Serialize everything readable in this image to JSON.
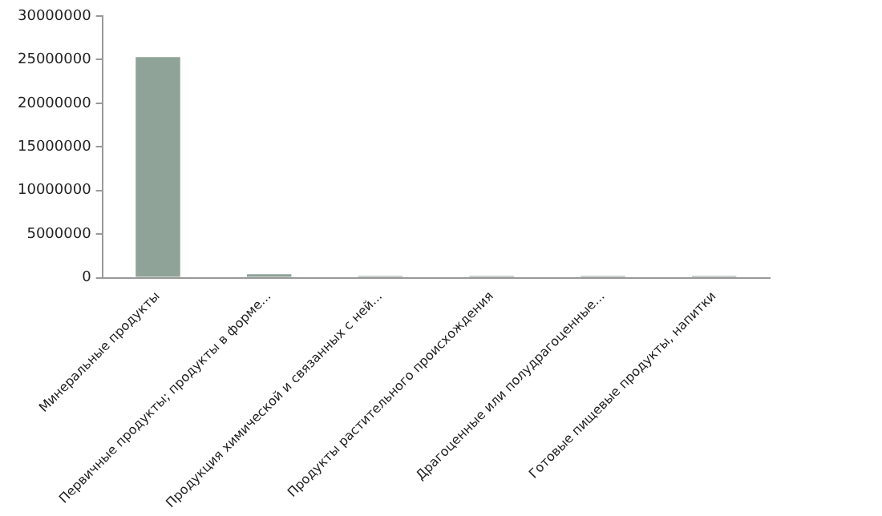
{
  "chart_data": {
    "type": "bar",
    "categories": [
      "Минеральные продукты",
      "Первичные продукты; продукты в форме...",
      "Продукция химической и связанных с ней...",
      "Продукты растительного происхождения",
      "Драгоценные или полудрагоценные...",
      "Готовые пищевые продукты, напитки"
    ],
    "values": [
      25300000,
      400000,
      200000,
      200000,
      200000,
      200000
    ],
    "color": "#8fa398",
    "ylim": [
      0,
      30000000
    ],
    "yticks": [
      0,
      5000000,
      10000000,
      15000000,
      20000000,
      25000000,
      30000000
    ],
    "grid": false,
    "legend": false
  }
}
